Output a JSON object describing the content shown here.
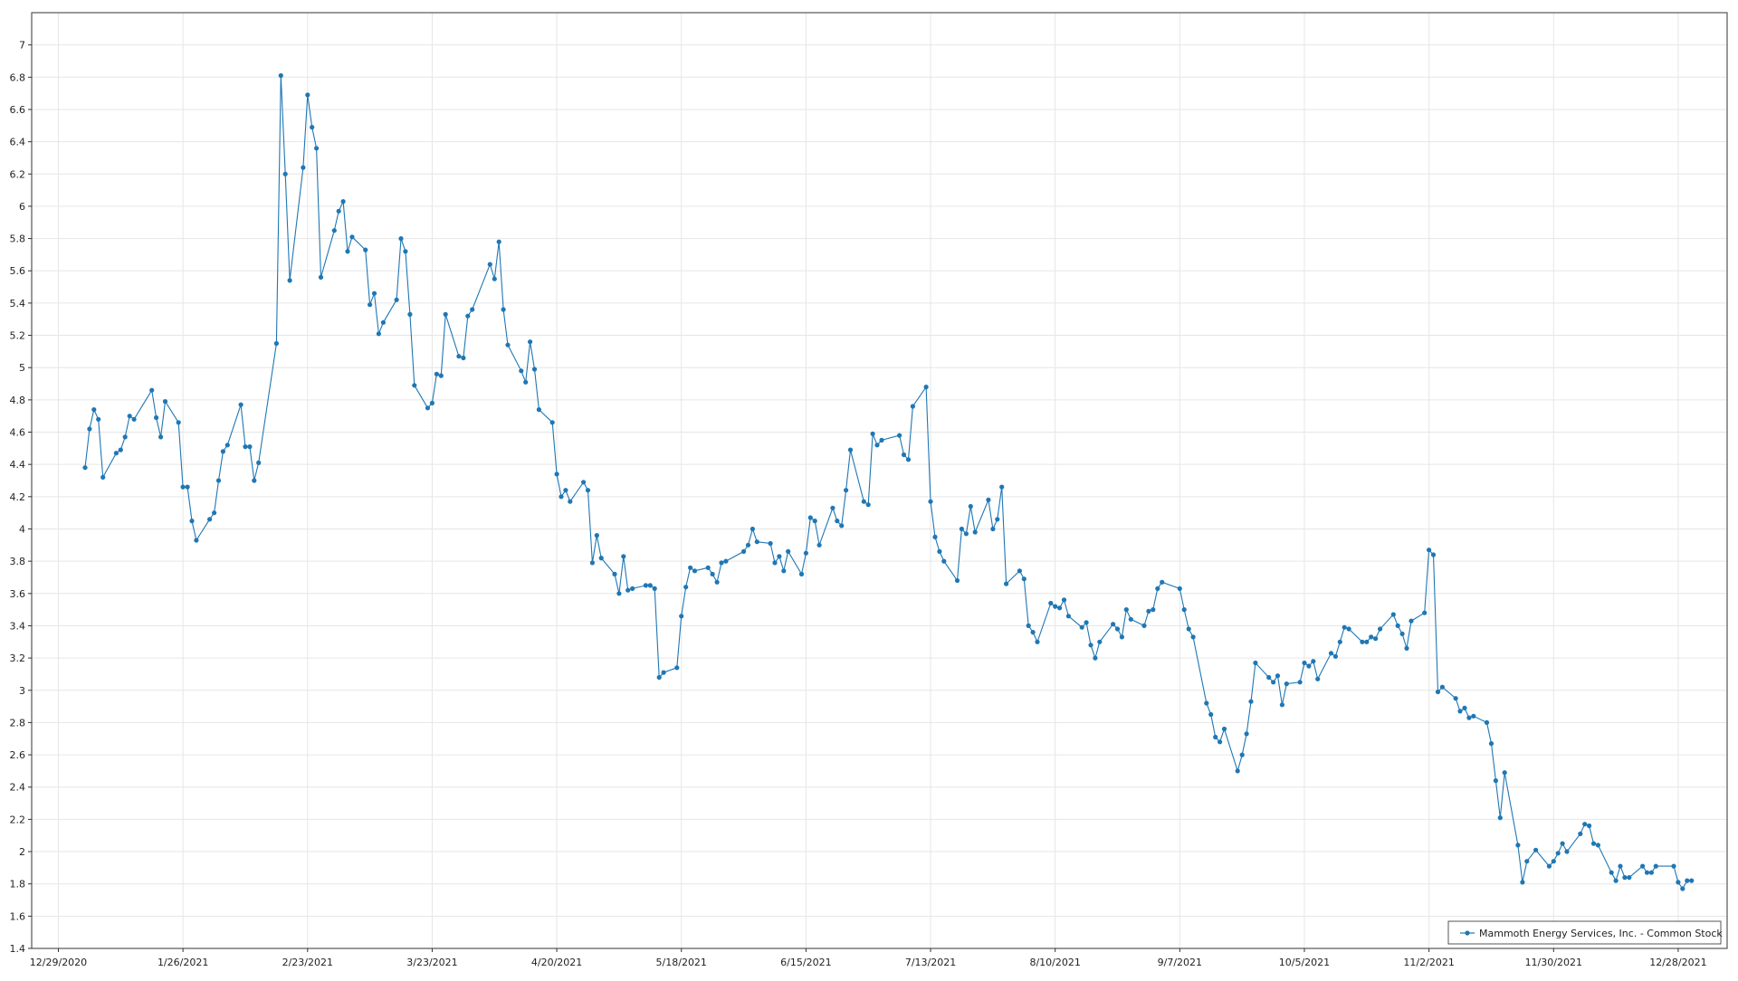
{
  "chart_data": {
    "type": "line",
    "title": "",
    "xlabel": "",
    "ylabel": "",
    "x_ticks": [
      "12/29/2020",
      "1/26/2021",
      "2/23/2021",
      "3/23/2021",
      "4/20/2021",
      "5/18/2021",
      "6/15/2021",
      "7/13/2021",
      "8/10/2021",
      "9/7/2021",
      "10/5/2021",
      "11/2/2021",
      "11/30/2021",
      "12/28/2021"
    ],
    "y_ticks": [
      "1.4",
      "1.6",
      "1.8",
      "2",
      "2.2",
      "2.4",
      "2.6",
      "2.8",
      "3",
      "3.2",
      "3.4",
      "3.6",
      "3.8",
      "4",
      "4.2",
      "4.4",
      "4.6",
      "4.8",
      "5",
      "5.2",
      "5.4",
      "5.6",
      "5.8",
      "6",
      "6.2",
      "6.4",
      "6.6",
      "6.8",
      "7"
    ],
    "ylim": [
      1.4,
      7.2
    ],
    "xlim": [
      "2020-12-23",
      "2022-01-08"
    ],
    "grid": true,
    "legend_position": "bottom-right",
    "color": "#1f77b4",
    "series": [
      {
        "name": "Mammoth Energy Services, Inc. - Common Stock",
        "x": [
          "2021-01-04",
          "2021-01-05",
          "2021-01-06",
          "2021-01-07",
          "2021-01-08",
          "2021-01-11",
          "2021-01-12",
          "2021-01-13",
          "2021-01-14",
          "2021-01-15",
          "2021-01-19",
          "2021-01-20",
          "2021-01-21",
          "2021-01-22",
          "2021-01-25",
          "2021-01-26",
          "2021-01-27",
          "2021-01-28",
          "2021-01-29",
          "2021-02-01",
          "2021-02-02",
          "2021-02-03",
          "2021-02-04",
          "2021-02-05",
          "2021-02-08",
          "2021-02-09",
          "2021-02-10",
          "2021-02-11",
          "2021-02-12",
          "2021-02-16",
          "2021-02-17",
          "2021-02-18",
          "2021-02-19",
          "2021-02-22",
          "2021-02-23",
          "2021-02-24",
          "2021-02-25",
          "2021-02-26",
          "2021-03-01",
          "2021-03-02",
          "2021-03-03",
          "2021-03-04",
          "2021-03-05",
          "2021-03-08",
          "2021-03-09",
          "2021-03-10",
          "2021-03-11",
          "2021-03-12",
          "2021-03-15",
          "2021-03-16",
          "2021-03-17",
          "2021-03-18",
          "2021-03-19",
          "2021-03-22",
          "2021-03-23",
          "2021-03-24",
          "2021-03-25",
          "2021-03-26",
          "2021-03-29",
          "2021-03-30",
          "2021-03-31",
          "2021-04-01",
          "2021-04-05",
          "2021-04-06",
          "2021-04-07",
          "2021-04-08",
          "2021-04-09",
          "2021-04-12",
          "2021-04-13",
          "2021-04-14",
          "2021-04-15",
          "2021-04-16",
          "2021-04-19",
          "2021-04-20",
          "2021-04-21",
          "2021-04-22",
          "2021-04-23",
          "2021-04-26",
          "2021-04-27",
          "2021-04-28",
          "2021-04-29",
          "2021-04-30",
          "2021-05-03",
          "2021-05-04",
          "2021-05-05",
          "2021-05-06",
          "2021-05-07",
          "2021-05-10",
          "2021-05-11",
          "2021-05-12",
          "2021-05-13",
          "2021-05-14",
          "2021-05-17",
          "2021-05-18",
          "2021-05-19",
          "2021-05-20",
          "2021-05-21",
          "2021-05-24",
          "2021-05-25",
          "2021-05-26",
          "2021-05-27",
          "2021-05-28",
          "2021-06-01",
          "2021-06-02",
          "2021-06-03",
          "2021-06-04",
          "2021-06-07",
          "2021-06-08",
          "2021-06-09",
          "2021-06-10",
          "2021-06-11",
          "2021-06-14",
          "2021-06-15",
          "2021-06-16",
          "2021-06-17",
          "2021-06-18",
          "2021-06-21",
          "2021-06-22",
          "2021-06-23",
          "2021-06-24",
          "2021-06-25",
          "2021-06-28",
          "2021-06-29",
          "2021-06-30",
          "2021-07-01",
          "2021-07-02",
          "2021-07-06",
          "2021-07-07",
          "2021-07-08",
          "2021-07-09",
          "2021-07-12",
          "2021-07-13",
          "2021-07-14",
          "2021-07-15",
          "2021-07-16",
          "2021-07-19",
          "2021-07-20",
          "2021-07-21",
          "2021-07-22",
          "2021-07-23",
          "2021-07-26",
          "2021-07-27",
          "2021-07-28",
          "2021-07-29",
          "2021-07-30",
          "2021-08-02",
          "2021-08-03",
          "2021-08-04",
          "2021-08-05",
          "2021-08-06",
          "2021-08-09",
          "2021-08-10",
          "2021-08-11",
          "2021-08-12",
          "2021-08-13",
          "2021-08-16",
          "2021-08-17",
          "2021-08-18",
          "2021-08-19",
          "2021-08-20",
          "2021-08-23",
          "2021-08-24",
          "2021-08-25",
          "2021-08-26",
          "2021-08-27",
          "2021-08-30",
          "2021-08-31",
          "2021-09-01",
          "2021-09-02",
          "2021-09-03",
          "2021-09-07",
          "2021-09-08",
          "2021-09-09",
          "2021-09-10",
          "2021-09-13",
          "2021-09-14",
          "2021-09-15",
          "2021-09-16",
          "2021-09-17",
          "2021-09-20",
          "2021-09-21",
          "2021-09-22",
          "2021-09-23",
          "2021-09-24",
          "2021-09-27",
          "2021-09-28",
          "2021-09-29",
          "2021-09-30",
          "2021-10-01",
          "2021-10-04",
          "2021-10-05",
          "2021-10-06",
          "2021-10-07",
          "2021-10-08",
          "2021-10-11",
          "2021-10-12",
          "2021-10-13",
          "2021-10-14",
          "2021-10-15",
          "2021-10-18",
          "2021-10-19",
          "2021-10-20",
          "2021-10-21",
          "2021-10-22",
          "2021-10-25",
          "2021-10-26",
          "2021-10-27",
          "2021-10-28",
          "2021-10-29",
          "2021-11-01",
          "2021-11-02",
          "2021-11-03",
          "2021-11-04",
          "2021-11-05",
          "2021-11-08",
          "2021-11-09",
          "2021-11-10",
          "2021-11-11",
          "2021-11-12",
          "2021-11-15",
          "2021-11-16",
          "2021-11-17",
          "2021-11-18",
          "2021-11-19",
          "2021-11-22",
          "2021-11-23",
          "2021-11-24",
          "2021-11-26",
          "2021-11-29",
          "2021-11-30",
          "2021-12-01",
          "2021-12-02",
          "2021-12-03",
          "2021-12-06",
          "2021-12-07",
          "2021-12-08",
          "2021-12-09",
          "2021-12-10",
          "2021-12-13",
          "2021-12-14",
          "2021-12-15",
          "2021-12-16",
          "2021-12-17",
          "2021-12-20",
          "2021-12-21",
          "2021-12-22",
          "2021-12-23",
          "2021-12-27",
          "2021-12-28",
          "2021-12-29",
          "2021-12-30",
          "2021-12-31"
        ],
        "values": [
          4.38,
          4.62,
          4.74,
          4.68,
          4.32,
          4.47,
          4.49,
          4.57,
          4.7,
          4.68,
          4.86,
          4.69,
          4.57,
          4.79,
          4.66,
          4.26,
          4.26,
          4.05,
          3.93,
          4.06,
          4.1,
          4.3,
          4.48,
          4.52,
          4.77,
          4.51,
          4.51,
          4.3,
          4.41,
          5.15,
          6.81,
          6.2,
          5.54,
          6.24,
          6.69,
          6.49,
          6.36,
          5.56,
          5.85,
          5.97,
          6.03,
          5.72,
          5.81,
          5.73,
          5.39,
          5.46,
          5.21,
          5.28,
          5.42,
          5.8,
          5.72,
          5.33,
          4.89,
          4.75,
          4.78,
          4.96,
          4.95,
          5.33,
          5.07,
          5.06,
          5.32,
          5.36,
          5.64,
          5.55,
          5.78,
          5.36,
          5.14,
          4.98,
          4.91,
          5.16,
          4.99,
          4.74,
          4.66,
          4.34,
          4.2,
          4.24,
          4.17,
          4.29,
          4.24,
          3.79,
          3.96,
          3.82,
          3.72,
          3.6,
          3.83,
          3.62,
          3.63,
          3.65,
          3.65,
          3.63,
          3.08,
          3.11,
          3.14,
          3.46,
          3.64,
          3.76,
          3.74,
          3.76,
          3.72,
          3.67,
          3.79,
          3.8,
          3.86,
          3.9,
          4.0,
          3.92,
          3.91,
          3.79,
          3.83,
          3.74,
          3.86,
          3.72,
          3.85,
          4.07,
          4.05,
          3.9,
          4.13,
          4.05,
          4.02,
          4.24,
          4.49,
          4.17,
          4.15,
          4.59,
          4.52,
          4.55,
          4.58,
          4.46,
          4.43,
          4.76,
          4.88,
          4.17,
          3.95,
          3.86,
          3.8,
          3.68,
          4.0,
          3.97,
          4.14,
          3.98,
          4.18,
          4.0,
          4.06,
          4.26,
          3.66,
          3.74,
          3.69,
          3.4,
          3.36,
          3.3,
          3.54,
          3.52,
          3.51,
          3.56,
          3.46,
          3.39,
          3.42,
          3.28,
          3.2,
          3.3,
          3.41,
          3.38,
          3.33,
          3.5,
          3.44,
          3.4,
          3.49,
          3.5,
          3.63,
          3.67,
          3.63,
          3.5,
          3.38,
          3.33,
          2.92,
          2.85,
          2.71,
          2.68,
          2.76,
          2.5,
          2.6,
          2.73,
          2.93,
          3.17,
          3.08,
          3.05,
          3.09,
          2.91,
          3.04,
          3.05,
          3.17,
          3.15,
          3.18,
          3.07,
          3.23,
          3.21,
          3.3,
          3.39,
          3.38,
          3.3,
          3.3,
          3.33,
          3.32,
          3.38,
          3.47,
          3.4,
          3.35,
          3.26,
          3.43,
          3.48,
          3.87,
          3.84,
          2.99,
          3.02,
          2.95,
          2.87,
          2.89,
          2.83,
          2.84,
          2.8,
          2.67,
          2.44,
          2.21,
          2.49,
          2.04,
          1.81,
          1.94,
          2.01,
          1.91,
          1.94,
          1.99,
          2.05,
          2.0,
          2.11,
          2.17,
          2.16,
          2.05,
          2.04,
          1.87,
          1.82,
          1.91,
          1.84,
          1.84,
          1.91,
          1.87,
          1.87,
          1.91,
          1.91,
          1.81,
          1.77,
          1.82,
          1.82
        ]
      }
    ]
  }
}
